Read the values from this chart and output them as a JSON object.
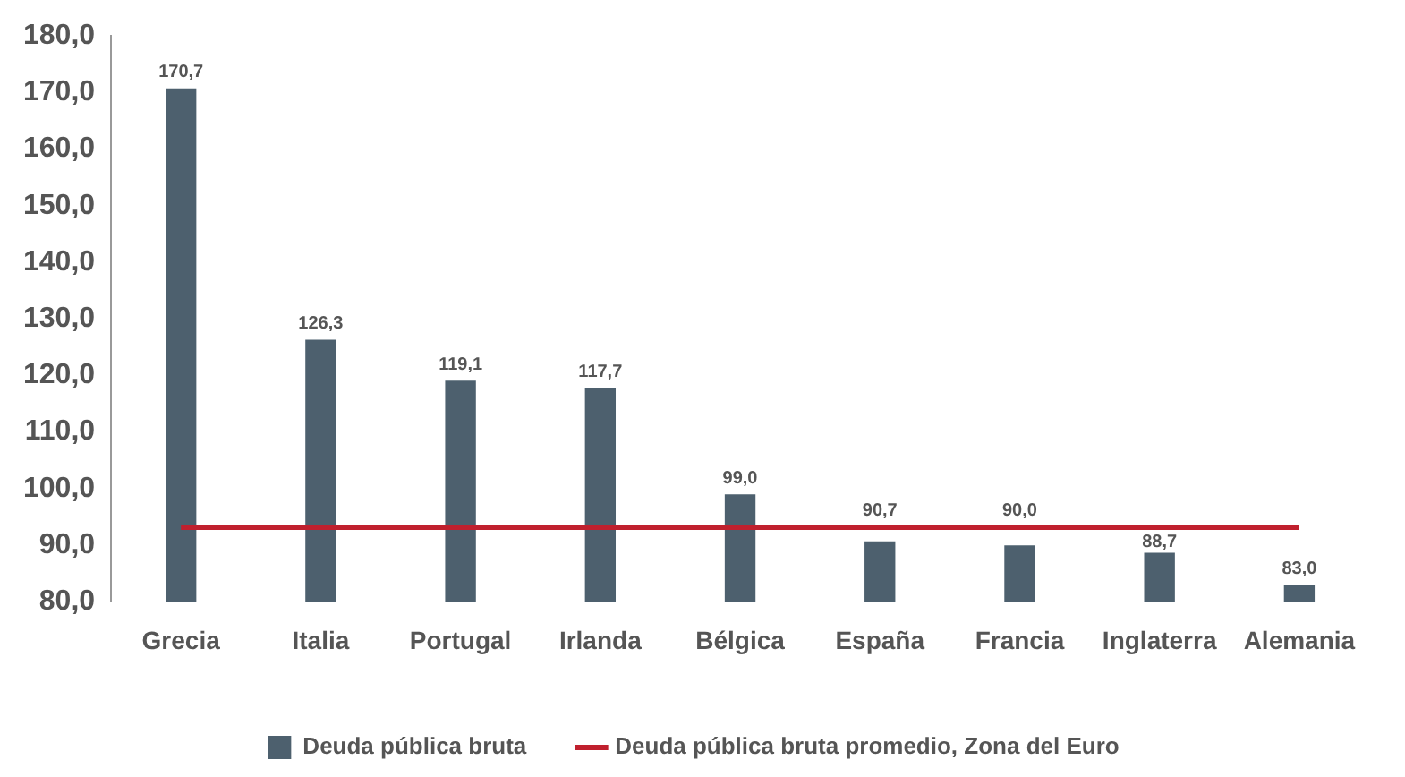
{
  "chart_data": {
    "type": "bar",
    "categories": [
      "Grecia",
      "Italia",
      "Portugal",
      "Irlanda",
      "Bélgica",
      "España",
      "Francia",
      "Inglaterra",
      "Alemania"
    ],
    "series": [
      {
        "name": "Deuda pública bruta",
        "color": "#4d606e",
        "values": [
          170.7,
          126.3,
          119.1,
          117.7,
          99.0,
          90.7,
          90.0,
          88.7,
          83.0
        ],
        "value_labels": [
          "170,7",
          "126,3",
          "119,1",
          "117,7",
          "99,0",
          "90,7",
          "90,0",
          "88,7",
          "83,0"
        ]
      },
      {
        "name": "Deuda pública bruta promedio, Zona del Euro",
        "type": "line",
        "color": "#c0202e",
        "values": [
          93.2,
          93.2,
          93.2,
          93.2,
          93.2,
          93.2,
          93.2,
          93.2,
          93.2
        ],
        "marker": "none"
      }
    ],
    "ylim": [
      80,
      180
    ],
    "yticks": [
      {
        "value": 80,
        "label": "80,0"
      },
      {
        "value": 90,
        "label": "90,0"
      },
      {
        "value": 100,
        "label": "100,0"
      },
      {
        "value": 110,
        "label": "110,0"
      },
      {
        "value": 120,
        "label": "120,0"
      },
      {
        "value": 130,
        "label": "130,0"
      },
      {
        "value": 140,
        "label": "140,0"
      },
      {
        "value": 150,
        "label": "150,0"
      },
      {
        "value": 160,
        "label": "160,0"
      },
      {
        "value": 170,
        "label": "170,0"
      },
      {
        "value": 180,
        "label": "180,0"
      }
    ],
    "grid": false,
    "legend": "bottom"
  }
}
